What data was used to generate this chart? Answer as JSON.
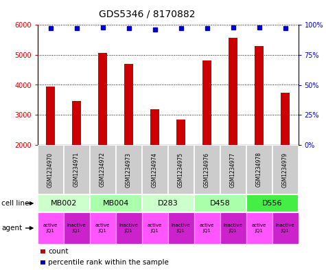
{
  "title": "GDS5346 / 8170882",
  "samples": [
    "GSM1234970",
    "GSM1234971",
    "GSM1234972",
    "GSM1234973",
    "GSM1234974",
    "GSM1234975",
    "GSM1234976",
    "GSM1234977",
    "GSM1234978",
    "GSM1234979"
  ],
  "counts": [
    3950,
    3470,
    5070,
    4700,
    3180,
    2850,
    4800,
    5560,
    5290,
    3730
  ],
  "percentile_ranks": [
    97,
    97,
    98,
    97,
    96,
    97,
    97,
    98,
    98,
    97
  ],
  "bar_color": "#cc0000",
  "dot_color": "#0000cc",
  "ymin": 2000,
  "ymax": 6000,
  "yticks": [
    2000,
    3000,
    4000,
    5000,
    6000
  ],
  "y2ticks": [
    0,
    25,
    50,
    75,
    100
  ],
  "cell_lines": [
    {
      "label": "MB002",
      "span": [
        0,
        2
      ],
      "color": "#ccffcc"
    },
    {
      "label": "MB004",
      "span": [
        2,
        4
      ],
      "color": "#aaffaa"
    },
    {
      "label": "D283",
      "span": [
        4,
        6
      ],
      "color": "#ccffcc"
    },
    {
      "label": "D458",
      "span": [
        6,
        8
      ],
      "color": "#aaffaa"
    },
    {
      "label": "D556",
      "span": [
        8,
        10
      ],
      "color": "#44ee44"
    }
  ],
  "agent_active_color": "#ff55ff",
  "agent_inactive_color": "#cc22cc",
  "sample_box_color": "#cccccc",
  "sample_box_edge": "#ffffff",
  "legend_count_color": "#cc0000",
  "legend_dot_color": "#0000cc",
  "fig_bg": "#ffffff"
}
